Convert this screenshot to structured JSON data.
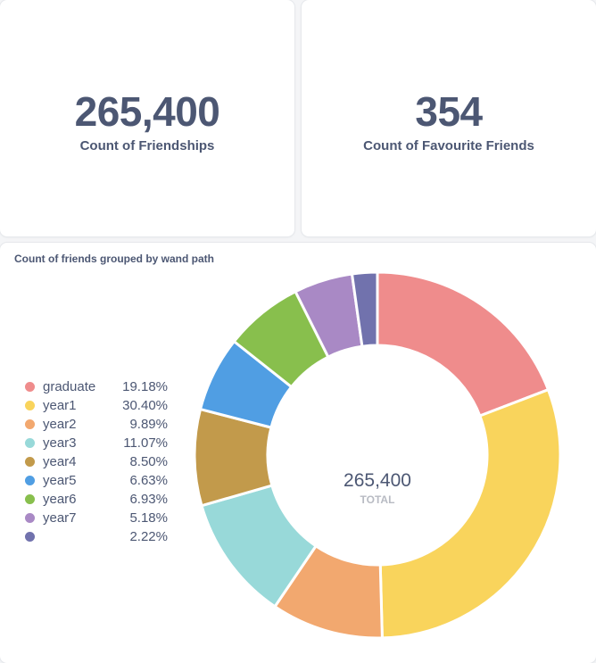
{
  "scalars": [
    {
      "value": "265,400",
      "label": "Count of Friendships"
    },
    {
      "value": "354",
      "label": "Count of Favourite Friends"
    }
  ],
  "chart_data": {
    "type": "pie",
    "title": "Count of friends grouped by wand path",
    "total": "265,400",
    "total_label": "TOTAL",
    "categories": [
      "graduate",
      "year1",
      "year2",
      "year3",
      "year4",
      "year5",
      "year6",
      "year7",
      ""
    ],
    "values": [
      19.18,
      30.4,
      9.89,
      11.07,
      8.5,
      6.63,
      6.93,
      5.18,
      2.22
    ],
    "percent_labels": [
      "19.18%",
      "30.40%",
      "9.89%",
      "11.07%",
      "8.50%",
      "6.63%",
      "6.93%",
      "5.18%",
      "2.22%"
    ],
    "colors": [
      "#ef8c8c",
      "#f9d45c",
      "#f2a86f",
      "#98d9d9",
      "#c29a4b",
      "#509ee3",
      "#88bf4d",
      "#a989c5",
      "#7172ad"
    ]
  }
}
